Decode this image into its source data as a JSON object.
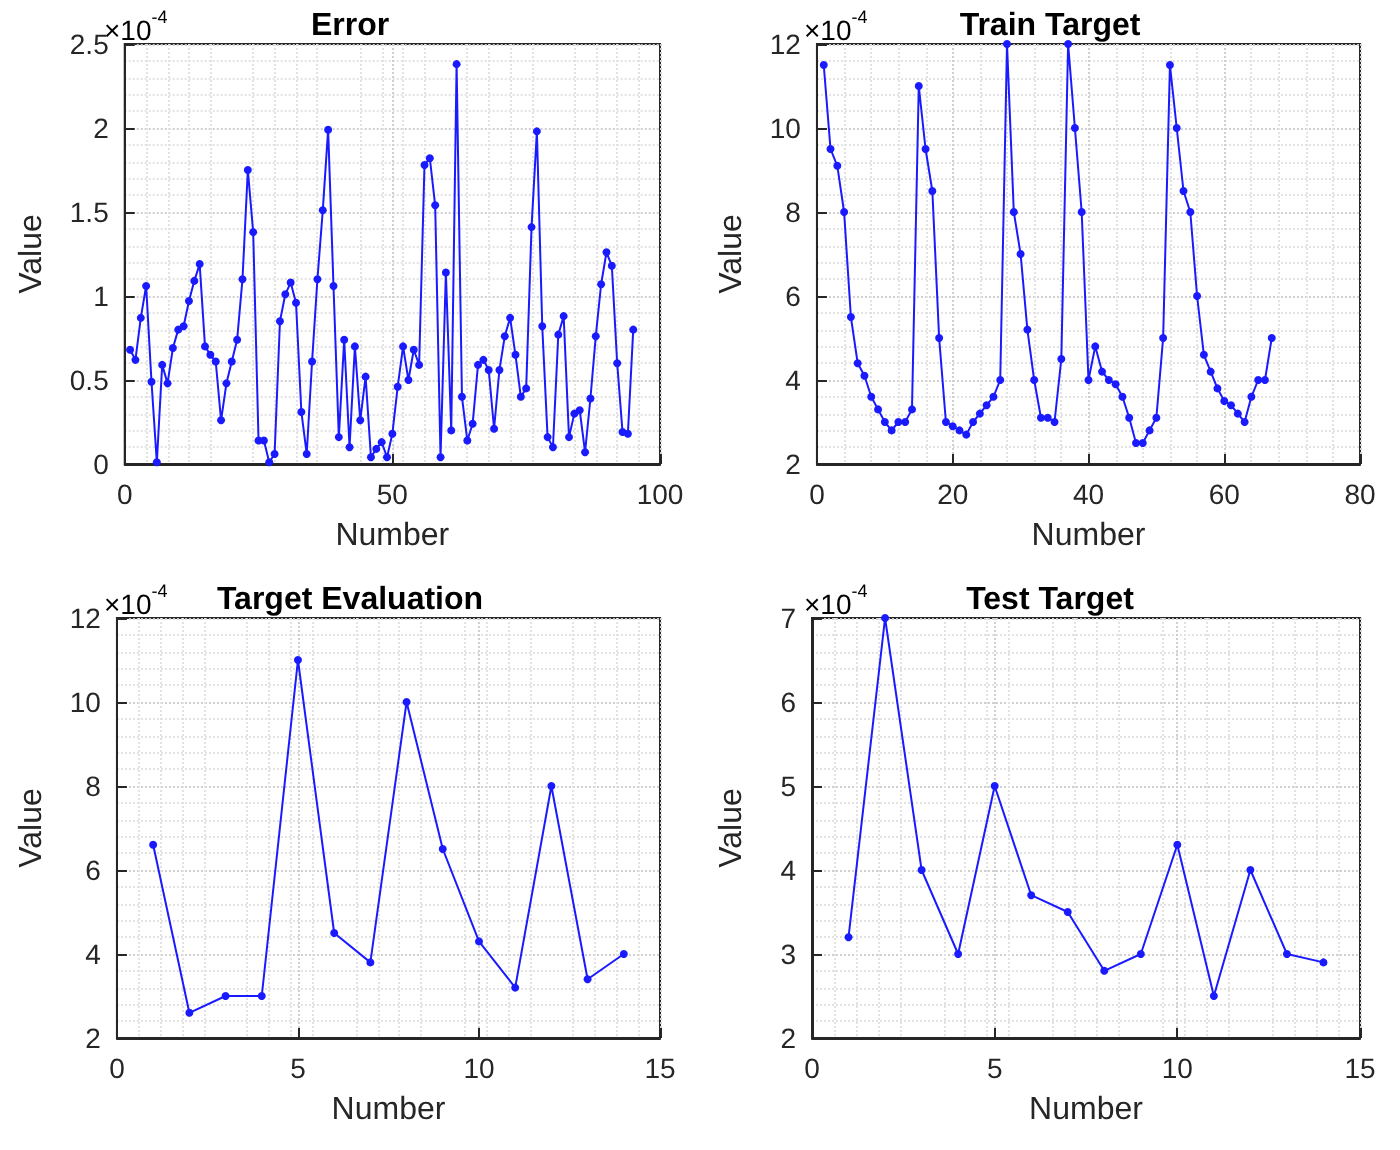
{
  "chart_data": [
    {
      "type": "line",
      "title": "Error",
      "xlabel": "Number",
      "ylabel": "Value",
      "annotations": [
        "×10$^{-4}$"
      ],
      "color": "#1a1aff",
      "marker": "circle",
      "line_style": "solid",
      "grid": true,
      "x": [
        1,
        2,
        3,
        4,
        5,
        6,
        7,
        8,
        9,
        10,
        11,
        12,
        13,
        14,
        15,
        16,
        17,
        18,
        19,
        20,
        21,
        22,
        23,
        24,
        25,
        26,
        27,
        28,
        29,
        30,
        31,
        32,
        33,
        34,
        35,
        36,
        37,
        38,
        39,
        40,
        41,
        42,
        43,
        44,
        45,
        46,
        47,
        48,
        49,
        50,
        51,
        52,
        53,
        54,
        55,
        56,
        57,
        58,
        59,
        60,
        61,
        62,
        63,
        64,
        65,
        66,
        67,
        68,
        69,
        70,
        71,
        72,
        73,
        74,
        75,
        76,
        77,
        78,
        79,
        80,
        81,
        82,
        83,
        84,
        85,
        86,
        87,
        88,
        89,
        90,
        91,
        92,
        93,
        94,
        95
      ],
      "values": [
        0.68,
        0.62,
        0.87,
        1.06,
        0.49,
        0.01,
        0.59,
        0.48,
        0.69,
        0.8,
        0.82,
        0.97,
        1.09,
        1.19,
        0.7,
        0.65,
        0.61,
        0.26,
        0.48,
        0.61,
        0.74,
        1.1,
        1.75,
        1.38,
        0.14,
        0.14,
        0.01,
        0.06,
        0.85,
        1.01,
        1.08,
        0.96,
        0.31,
        0.06,
        0.61,
        1.1,
        1.51,
        1.99,
        1.06,
        0.16,
        0.74,
        0.1,
        0.7,
        0.26,
        0.52,
        0.04,
        0.09,
        0.13,
        0.04,
        0.18,
        0.46,
        0.7,
        0.5,
        0.68,
        0.59,
        1.78,
        1.82,
        1.54,
        0.04,
        1.14,
        0.2,
        2.38,
        0.4,
        0.14,
        0.24,
        0.59,
        0.62,
        0.56,
        0.21,
        0.56,
        0.76,
        0.87,
        0.65,
        0.4,
        0.45,
        1.41,
        1.98,
        0.82,
        0.16,
        0.1,
        0.77,
        0.88,
        0.16,
        0.3,
        0.32,
        0.07,
        0.39,
        0.76,
        1.07,
        1.26,
        1.18,
        0.6,
        0.19,
        0.18,
        0.8
      ],
      "xlim": [
        0,
        100
      ],
      "xticks": [
        0,
        50,
        100
      ],
      "ylim": [
        0,
        2.5
      ],
      "yticks": [
        0,
        0.5,
        1,
        1.5,
        2,
        2.5
      ]
    },
    {
      "type": "line",
      "title": "Train Target",
      "xlabel": "Number",
      "ylabel": "Value",
      "annotations": [
        "×10$^{-4}$"
      ],
      "color": "#1a1aff",
      "marker": "circle",
      "line_style": "solid",
      "grid": true,
      "x": [
        1,
        2,
        3,
        4,
        5,
        6,
        7,
        8,
        9,
        10,
        11,
        12,
        13,
        14,
        15,
        16,
        17,
        18,
        19,
        20,
        21,
        22,
        23,
        24,
        25,
        26,
        27,
        28,
        29,
        30,
        31,
        32,
        33,
        34,
        35,
        36,
        37,
        38,
        39,
        40,
        41,
        42,
        43,
        44,
        45,
        46,
        47,
        48,
        49,
        50,
        51,
        52,
        53,
        54,
        55,
        56,
        57,
        58,
        59,
        60,
        61,
        62,
        63,
        64,
        65,
        66,
        67
      ],
      "values": [
        11.5,
        9.5,
        9.1,
        8,
        5.5,
        4.4,
        4.1,
        3.6,
        3.3,
        3,
        2.8,
        3,
        3,
        3.3,
        11,
        9.5,
        8.5,
        5,
        3,
        2.9,
        2.8,
        2.7,
        3,
        3.2,
        3.4,
        3.6,
        4,
        12,
        8,
        7,
        5.2,
        4,
        3.1,
        3.1,
        3,
        4.5,
        12,
        10,
        8,
        4,
        4.8,
        4.2,
        4,
        3.9,
        3.6,
        3.1,
        2.5,
        2.5,
        2.8,
        3.1,
        5,
        11.5,
        10,
        8.5,
        8,
        6,
        4.6,
        4.2,
        3.8,
        3.5,
        3.4,
        3.2,
        3,
        3.6,
        4,
        4,
        5
      ],
      "xlim": [
        0,
        80
      ],
      "xticks": [
        0,
        20,
        40,
        60,
        80
      ],
      "ylim": [
        2,
        12
      ],
      "yticks": [
        2,
        4,
        6,
        8,
        10,
        12
      ]
    },
    {
      "type": "line",
      "title": "Target Evaluation",
      "xlabel": "Number",
      "ylabel": "Value",
      "annotations": [
        "×10$^{-4}$"
      ],
      "color": "#1a1aff",
      "marker": "circle",
      "line_style": "solid",
      "grid": true,
      "x": [
        1,
        2,
        3,
        4,
        5,
        6,
        7,
        8,
        9,
        10,
        11,
        12,
        13,
        14
      ],
      "values": [
        6.6,
        2.6,
        3,
        3,
        11,
        4.5,
        3.8,
        10,
        6.5,
        4.3,
        3.2,
        8,
        3.4,
        4
      ],
      "xlim": [
        0,
        15
      ],
      "xticks": [
        0,
        5,
        10,
        15
      ],
      "ylim": [
        2,
        12
      ],
      "yticks": [
        2,
        4,
        6,
        8,
        10,
        12
      ]
    },
    {
      "type": "line",
      "title": "Test Target",
      "xlabel": "Number",
      "ylabel": "Value",
      "annotations": [
        "×10$^{-4}$"
      ],
      "color": "#1a1aff",
      "marker": "circle",
      "line_style": "solid",
      "grid": true,
      "x": [
        1,
        2,
        3,
        4,
        5,
        6,
        7,
        8,
        9,
        10,
        11,
        12,
        13,
        14
      ],
      "values": [
        3.2,
        7,
        4,
        3,
        5,
        3.7,
        3.5,
        2.8,
        3,
        4.3,
        2.5,
        4,
        3,
        2.9
      ],
      "xlim": [
        0,
        15
      ],
      "xticks": [
        0,
        5,
        10,
        15
      ],
      "ylim": [
        2,
        7
      ],
      "yticks": [
        2,
        3,
        4,
        5,
        6,
        7
      ]
    }
  ]
}
